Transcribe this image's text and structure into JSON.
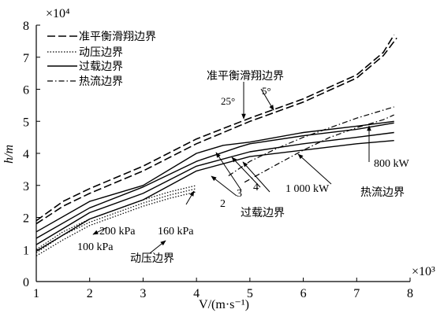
{
  "chart_data": {
    "type": "line",
    "xlabel": "V/(m·s⁻¹)",
    "ylabel": "h/m",
    "x_multiplier": "×10³",
    "y_multiplier": "×10⁴",
    "xlim": [
      1,
      8
    ],
    "ylim": [
      0,
      8
    ],
    "xticks": [
      "1",
      "2",
      "3",
      "4",
      "5",
      "6",
      "7",
      "8"
    ],
    "yticks": [
      "0",
      "1",
      "2",
      "3",
      "4",
      "5",
      "6",
      "7",
      "8"
    ],
    "grid": false,
    "legend_position": "top-left",
    "legend": [
      {
        "label": "准平衡滑翔边界",
        "style": "dashed"
      },
      {
        "label": "动压边界",
        "style": "dotted"
      },
      {
        "label": "过载边界",
        "style": "solid"
      },
      {
        "label": "热流边界",
        "style": "dashdot"
      }
    ],
    "series": [
      {
        "group": "准平衡滑翔边界",
        "style": "dashed",
        "x": [
          1,
          1.5,
          2,
          3,
          4,
          5,
          6,
          7,
          7.5,
          7.75
        ],
        "y": [
          1.8,
          2.35,
          2.75,
          3.45,
          4.3,
          5.0,
          5.6,
          6.35,
          7.05,
          7.6
        ]
      },
      {
        "group": "准平衡滑翔边界",
        "style": "dashed",
        "x": [
          1,
          1.5,
          2,
          3,
          4,
          5,
          6,
          7,
          7.5,
          7.7
        ],
        "y": [
          1.9,
          2.5,
          2.9,
          3.6,
          4.45,
          5.1,
          5.7,
          6.45,
          7.15,
          7.7
        ]
      },
      {
        "group": "动压边界",
        "style": "dotted",
        "x": [
          1,
          1.5,
          2,
          2.5,
          3,
          3.5,
          4
        ],
        "y": [
          0.8,
          1.3,
          1.75,
          2.05,
          2.35,
          2.6,
          2.8
        ]
      },
      {
        "group": "动压边界",
        "style": "dotted",
        "x": [
          1,
          1.5,
          2,
          2.5,
          3,
          3.5,
          4
        ],
        "y": [
          0.9,
          1.45,
          1.85,
          2.15,
          2.45,
          2.7,
          2.9
        ]
      },
      {
        "group": "动压边界",
        "style": "dotted",
        "x": [
          1,
          1.5,
          2,
          2.5,
          3,
          3.5,
          4
        ],
        "y": [
          1.0,
          1.55,
          1.95,
          2.25,
          2.55,
          2.8,
          3.0
        ]
      },
      {
        "group": "过载边界",
        "style": "solid",
        "x": [
          1,
          2,
          3,
          4,
          5,
          6,
          7,
          7.7
        ],
        "y": [
          0.95,
          1.95,
          2.55,
          3.45,
          3.9,
          4.1,
          4.3,
          4.4
        ]
      },
      {
        "group": "过载边界",
        "style": "solid",
        "x": [
          1,
          2,
          3,
          4,
          5,
          6,
          7,
          7.7
        ],
        "y": [
          1.15,
          2.15,
          2.75,
          3.6,
          4.05,
          4.3,
          4.5,
          4.65
        ]
      },
      {
        "group": "过载边界",
        "style": "solid",
        "x": [
          1,
          2,
          3,
          4,
          4.8,
          5,
          6,
          7,
          7.7
        ],
        "y": [
          1.35,
          2.3,
          2.95,
          3.75,
          4.2,
          4.3,
          4.55,
          4.75,
          4.95
        ]
      },
      {
        "group": "过载边界",
        "style": "solid",
        "x": [
          1,
          2,
          3,
          4,
          4.5,
          5,
          6,
          7,
          7.7
        ],
        "y": [
          1.55,
          2.5,
          3.0,
          4.0,
          4.25,
          4.35,
          4.65,
          4.85,
          5.0
        ]
      },
      {
        "group": "热流边界",
        "style": "dashdot",
        "x": [
          4.9,
          5.5,
          6.0,
          6.5,
          7.0,
          7.5,
          7.7
        ],
        "y": [
          3.1,
          3.65,
          4.1,
          4.5,
          4.8,
          5.05,
          5.2
        ]
      },
      {
        "group": "热流边界",
        "style": "dashdot",
        "x": [
          4.6,
          5.0,
          5.5,
          6.0,
          6.5,
          7.0,
          7.5,
          7.7
        ],
        "y": [
          3.3,
          3.75,
          4.15,
          4.5,
          4.8,
          5.1,
          5.35,
          5.45
        ]
      }
    ],
    "annotations": [
      {
        "id": "quasi",
        "text": "准平衡滑翔边界"
      },
      {
        "id": "deg25",
        "text": "25°"
      },
      {
        "id": "deg5",
        "text": "5°"
      },
      {
        "id": "kpa200",
        "text": "200 kPa"
      },
      {
        "id": "kpa160",
        "text": "160 kPa"
      },
      {
        "id": "kpa100",
        "text": "100 kPa"
      },
      {
        "id": "dyn",
        "text": "动压边界"
      },
      {
        "id": "n2",
        "text": "2"
      },
      {
        "id": "n3",
        "text": "3"
      },
      {
        "id": "n4",
        "text": "4"
      },
      {
        "id": "overload",
        "text": "过载边界"
      },
      {
        "id": "kw1000",
        "text": "1 000 kW"
      },
      {
        "id": "heat",
        "text": "热流边界"
      },
      {
        "id": "kw800",
        "text": "800 kW"
      }
    ]
  }
}
